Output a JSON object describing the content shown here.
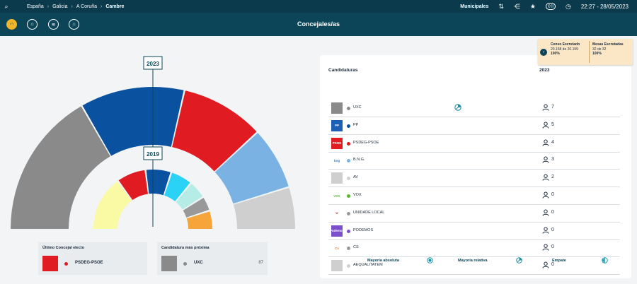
{
  "topbar": {
    "breadcrumbs": [
      "España",
      "Galicia",
      "A Coruña"
    ],
    "current": "Cambre",
    "election_type": "Municipales",
    "datetime": "22:27 - 28/05/2023"
  },
  "header": {
    "title": "Concejales/as"
  },
  "nav_icons": [
    "hemicycle-icon",
    "building-icon",
    "map-icon",
    "house-icon"
  ],
  "hemicycle": {
    "outer_year": "2023",
    "inner_year": "2019",
    "outer_seats": [
      {
        "party": "UXC",
        "seats": 7,
        "color": "#8a8a8a"
      },
      {
        "party": "PP",
        "seats": 5,
        "color": "#0a52a0"
      },
      {
        "party": "PSDEG-PSOE",
        "seats": 4,
        "color": "#e01b22"
      },
      {
        "party": "B.N.G.",
        "seats": 3,
        "color": "#7ab2e4"
      },
      {
        "party": "AV",
        "seats": 2,
        "color": "#cfcfcf"
      }
    ],
    "inner_seats": [
      {
        "color": "#fafaa4",
        "share": 0.3
      },
      {
        "color": "#e01b22",
        "share": 0.16
      },
      {
        "color": "#0a52a0",
        "share": 0.14
      },
      {
        "color": "#2ad3f5",
        "share": 0.12
      },
      {
        "color": "#b5ece6",
        "share": 0.1
      },
      {
        "color": "#999999",
        "share": 0.08
      },
      {
        "color": "#f5a53a",
        "share": 0.1
      }
    ]
  },
  "last_elected": {
    "label": "Último Concejal electo",
    "party": "PSDEG-PSOE",
    "color": "#e01b22"
  },
  "next_closest": {
    "label": "Candidatura más próxima",
    "party": "UXC",
    "color": "#8a8a8a",
    "dot_color": "#8a8a8a",
    "value": "87"
  },
  "table": {
    "col_candidaturas": "Candidaturas",
    "col_year": "2023",
    "rows": [
      {
        "name": "UXC",
        "seats": "7",
        "dot": "#8a8a8a",
        "logo_bg": "#8a8a8a",
        "logo_text": "",
        "logo_fg": "#fff",
        "mark": true
      },
      {
        "name": "PP",
        "seats": "5",
        "dot": "#0a52a0",
        "logo_bg": "#1d5fb4",
        "logo_text": "PP",
        "logo_fg": "#fff"
      },
      {
        "name": "PSDEG-PSOE",
        "seats": "4",
        "dot": "#e01b22",
        "logo_bg": "#e01b22",
        "logo_text": "PSOE",
        "logo_fg": "#fff"
      },
      {
        "name": "B.N.G.",
        "seats": "3",
        "dot": "#7ab2e4",
        "logo_bg": "#ffffff",
        "logo_text": "bng",
        "logo_fg": "#3b7dc4"
      },
      {
        "name": "AV",
        "seats": "2",
        "dot": "#cfcfcf",
        "logo_bg": "#cfcfcf",
        "logo_text": "",
        "logo_fg": "#fff"
      },
      {
        "name": "VOX",
        "seats": "0",
        "dot": "#5ab52f",
        "logo_bg": "#ffffff",
        "logo_text": "VOX",
        "logo_fg": "#5ab52f"
      },
      {
        "name": "UNIDADE LOCAL",
        "seats": "0",
        "dot": "#999999",
        "logo_bg": "#ffffff",
        "logo_text": "U",
        "logo_fg": "#c0392b"
      },
      {
        "name": "PODEMOS",
        "seats": "0",
        "dot": "#7b4fc9",
        "logo_bg": "#7b4fc9",
        "logo_text": "Podemos",
        "logo_fg": "#fff"
      },
      {
        "name": "CS",
        "seats": "0",
        "dot": "#999999",
        "logo_bg": "#ffffff",
        "logo_text": "Cs",
        "logo_fg": "#e8782a"
      },
      {
        "name": "AEQUALITATEM",
        "seats": "0",
        "dot": "#cfcfcf",
        "logo_bg": "#cfcfcf",
        "logo_text": "",
        "logo_fg": "#fff"
      }
    ]
  },
  "legend": {
    "absolute": "Mayoría absoluta",
    "relative": "Mayoría relativa",
    "tie": "Empate"
  },
  "tooltip": {
    "censo_label": "Censo Escrutado",
    "censo_value": "20.158 de 20.159",
    "censo_pct": "100%",
    "mesas_label": "Mesas Escrutadas",
    "mesas_value": "32 de 32",
    "mesas_pct": "100%"
  },
  "colors": {
    "topbar": "#0a3a4c",
    "header": "#0c4558",
    "accent": "#f0b429"
  }
}
